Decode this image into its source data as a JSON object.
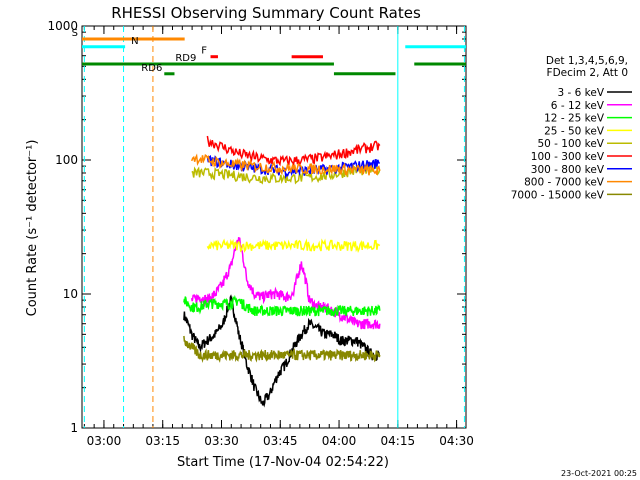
{
  "chart_data": {
    "type": "line",
    "title": "RHESSI Observing Summary Count Rates",
    "xlabel": "Start Time (17-Nov-04 02:54:22)",
    "ylabel": "Count Rate (s⁻¹ detector⁻¹)",
    "ylog": true,
    "ylim": [
      1,
      1000
    ],
    "xlim_minutes": [
      0,
      98
    ],
    "x_ticks": [
      {
        "label": "03:00",
        "minute": 5.6
      },
      {
        "label": "03:15",
        "minute": 20.6
      },
      {
        "label": "03:30",
        "minute": 35.6
      },
      {
        "label": "03:45",
        "minute": 50.6
      },
      {
        "label": "04:00",
        "minute": 65.6
      },
      {
        "label": "04:15",
        "minute": 80.6
      },
      {
        "label": "04:30",
        "minute": 95.6
      }
    ],
    "y_ticks": [
      {
        "label": "1",
        "value": 1
      },
      {
        "label": "10",
        "value": 10
      },
      {
        "label": "100",
        "value": 100
      },
      {
        "label": "1000",
        "value": 1000
      }
    ],
    "footer": "23-Oct-2021 00:25",
    "legend_header": [
      "Det 1,3,4,5,6,9,",
      "FDecim 2, Att 0"
    ],
    "series": [
      {
        "name": "3 - 6 keV",
        "color": "#000000",
        "points": [
          [
            26,
            7
          ],
          [
            28,
            5
          ],
          [
            30,
            4
          ],
          [
            32,
            4.5
          ],
          [
            34,
            5
          ],
          [
            36,
            6
          ],
          [
            38,
            9
          ],
          [
            40,
            5
          ],
          [
            42,
            3
          ],
          [
            44,
            2
          ],
          [
            46,
            1.5
          ],
          [
            48,
            1.8
          ],
          [
            50,
            2.5
          ],
          [
            52,
            3
          ],
          [
            54,
            4
          ],
          [
            56,
            5
          ],
          [
            58,
            6
          ],
          [
            60,
            5.5
          ],
          [
            62,
            5
          ],
          [
            64,
            5
          ],
          [
            66,
            4.5
          ],
          [
            68,
            4.5
          ],
          [
            70,
            4.5
          ],
          [
            72,
            4
          ],
          [
            74,
            3.5
          ],
          [
            76,
            3.5
          ]
        ]
      },
      {
        "name": "6 - 12 keV",
        "color": "#ff00ff",
        "points": [
          [
            28,
            9
          ],
          [
            30,
            9.5
          ],
          [
            32,
            9
          ],
          [
            34,
            10
          ],
          [
            36,
            12
          ],
          [
            38,
            16
          ],
          [
            40,
            26
          ],
          [
            42,
            13
          ],
          [
            44,
            10
          ],
          [
            46,
            9.5
          ],
          [
            48,
            10
          ],
          [
            50,
            10
          ],
          [
            52,
            9.5
          ],
          [
            54,
            10
          ],
          [
            56,
            17
          ],
          [
            58,
            9
          ],
          [
            60,
            8
          ],
          [
            62,
            8
          ],
          [
            64,
            7.5
          ],
          [
            66,
            7
          ],
          [
            68,
            6.5
          ],
          [
            70,
            6
          ],
          [
            72,
            6
          ],
          [
            74,
            6
          ],
          [
            76,
            6
          ]
        ]
      },
      {
        "name": "12 - 25 keV",
        "color": "#00ff00",
        "points": [
          [
            26,
            9
          ],
          [
            28,
            8
          ],
          [
            30,
            8
          ],
          [
            32,
            8.5
          ],
          [
            34,
            8.5
          ],
          [
            36,
            8.5
          ],
          [
            38,
            8.5
          ],
          [
            40,
            9
          ],
          [
            42,
            8
          ],
          [
            44,
            7.5
          ],
          [
            46,
            7.5
          ],
          [
            48,
            7.5
          ],
          [
            50,
            7.5
          ],
          [
            52,
            7.5
          ],
          [
            54,
            7.5
          ],
          [
            56,
            7.5
          ],
          [
            58,
            7.5
          ],
          [
            60,
            7.5
          ],
          [
            62,
            7.5
          ],
          [
            64,
            7.5
          ],
          [
            66,
            7.5
          ],
          [
            68,
            7.5
          ],
          [
            70,
            7.5
          ],
          [
            72,
            7.5
          ],
          [
            74,
            7.5
          ],
          [
            76,
            7.5
          ]
        ]
      },
      {
        "name": "25 - 50 keV",
        "color": "#ffff00",
        "points": [
          [
            32,
            23
          ],
          [
            36,
            23
          ],
          [
            40,
            23
          ],
          [
            44,
            23
          ],
          [
            48,
            23
          ],
          [
            52,
            23
          ],
          [
            56,
            23
          ],
          [
            60,
            23
          ],
          [
            64,
            23
          ],
          [
            68,
            23
          ],
          [
            72,
            23
          ],
          [
            76,
            23
          ]
        ]
      },
      {
        "name": "50 - 100 keV",
        "color": "#bbbb00",
        "points": [
          [
            28,
            80
          ],
          [
            32,
            80
          ],
          [
            36,
            78
          ],
          [
            40,
            76
          ],
          [
            44,
            74
          ],
          [
            48,
            73
          ],
          [
            52,
            73
          ],
          [
            56,
            74
          ],
          [
            60,
            75
          ],
          [
            64,
            78
          ],
          [
            68,
            82
          ],
          [
            72,
            84
          ],
          [
            76,
            85
          ]
        ]
      },
      {
        "name": "100 - 300 keV",
        "color": "#ff0000",
        "points": [
          [
            32,
            140
          ],
          [
            36,
            125
          ],
          [
            40,
            112
          ],
          [
            44,
            105
          ],
          [
            48,
            100
          ],
          [
            52,
            98
          ],
          [
            56,
            100
          ],
          [
            60,
            103
          ],
          [
            64,
            108
          ],
          [
            68,
            115
          ],
          [
            72,
            122
          ],
          [
            76,
            128
          ]
        ]
      },
      {
        "name": "300 - 800 keV",
        "color": "#0000ff",
        "points": [
          [
            32,
            100
          ],
          [
            36,
            95
          ],
          [
            40,
            90
          ],
          [
            44,
            87
          ],
          [
            48,
            85
          ],
          [
            52,
            83
          ],
          [
            56,
            83
          ],
          [
            60,
            84
          ],
          [
            64,
            86
          ],
          [
            68,
            89
          ],
          [
            72,
            92
          ],
          [
            76,
            95
          ]
        ]
      },
      {
        "name": "800 - 7000 keV",
        "color": "#ff8800",
        "points": [
          [
            28,
            105
          ],
          [
            32,
            100
          ],
          [
            36,
            95
          ],
          [
            40,
            92
          ],
          [
            44,
            90
          ],
          [
            48,
            88
          ],
          [
            52,
            87
          ],
          [
            56,
            86
          ],
          [
            60,
            86
          ],
          [
            64,
            86
          ],
          [
            68,
            85
          ],
          [
            72,
            84
          ],
          [
            76,
            83
          ]
        ]
      },
      {
        "name": "7000 - 15000 keV",
        "color": "#888800",
        "points": [
          [
            26,
            4.5
          ],
          [
            28,
            4
          ],
          [
            30,
            3.5
          ],
          [
            32,
            3.5
          ],
          [
            34,
            3.5
          ],
          [
            36,
            3.5
          ],
          [
            38,
            3.5
          ],
          [
            40,
            3.5
          ],
          [
            42,
            3.5
          ],
          [
            44,
            3.5
          ],
          [
            46,
            3.5
          ],
          [
            48,
            3.5
          ],
          [
            50,
            3.5
          ],
          [
            52,
            3.5
          ],
          [
            54,
            3.5
          ],
          [
            56,
            3.5
          ],
          [
            58,
            3.5
          ],
          [
            60,
            3.5
          ],
          [
            62,
            3.5
          ],
          [
            64,
            3.5
          ],
          [
            66,
            3.5
          ],
          [
            68,
            3.5
          ],
          [
            70,
            3.5
          ],
          [
            72,
            3.5
          ],
          [
            74,
            3.5
          ],
          [
            76,
            3.5
          ]
        ]
      }
    ],
    "flags": [
      {
        "label": "S",
        "color": "#ff8800",
        "y": 800,
        "segments": [
          [
            0,
            26.2
          ]
        ]
      },
      {
        "label": "N",
        "color": "#00ffff",
        "y": 700,
        "segments": [
          [
            0,
            11
          ],
          [
            82.5,
            98
          ]
        ]
      },
      {
        "label": "RD9",
        "color": "#008800",
        "y": 520,
        "segments": [
          [
            0,
            64.3
          ]
        ]
      },
      {
        "label": "RD6",
        "color": "#008800",
        "y": 440,
        "segments": [
          [
            21,
            23.6
          ],
          [
            64.3,
            80
          ]
        ]
      },
      {
        "label": "",
        "color": "#008800",
        "y": 520,
        "segments": [
          [
            84.8,
            98
          ]
        ]
      },
      {
        "label": "F",
        "color": "#ff0000",
        "y": 590,
        "segments": [
          [
            32.8,
            34.7
          ],
          [
            53.5,
            61.5
          ]
        ]
      }
    ],
    "event_lines": [
      {
        "minute": 0.6,
        "color": "#00ffff",
        "style": "dashed"
      },
      {
        "minute": 10.6,
        "color": "#00ffff",
        "style": "dashed"
      },
      {
        "minute": 18.1,
        "color": "#ff8800",
        "style": "dashed"
      },
      {
        "minute": 97.6,
        "color": "#00ffff",
        "style": "dashed"
      },
      {
        "minute": 80.6,
        "color": "#00ffff",
        "style": "solid"
      }
    ]
  }
}
